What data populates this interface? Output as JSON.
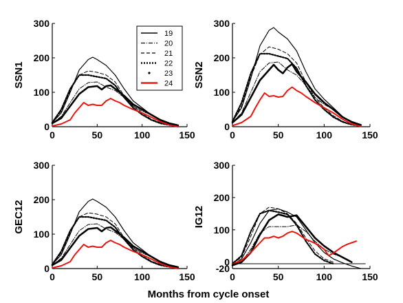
{
  "figure": {
    "xlabel": "Months from cycle onset"
  },
  "chart_data": [
    {
      "type": "line",
      "ylabel": "SSN1",
      "xlim": [
        0,
        150
      ],
      "ylim": [
        0,
        300
      ],
      "xticks": [
        "0",
        "50",
        "100",
        "150"
      ],
      "yticks": [
        "0",
        "100",
        "200",
        "300"
      ],
      "legend": {
        "placement": "top-right",
        "entries": [
          "19",
          "20",
          "21",
          "22",
          "23",
          "24"
        ]
      },
      "series": [
        {
          "name": "19",
          "style": "solid",
          "color": "#000000",
          "x": [
            0,
            10,
            20,
            30,
            40,
            45,
            50,
            60,
            70,
            80,
            90,
            100,
            110,
            120,
            130,
            140
          ],
          "y": [
            12,
            40,
            100,
            165,
            195,
            202,
            195,
            178,
            150,
            110,
            75,
            55,
            35,
            18,
            8,
            2
          ]
        },
        {
          "name": "20",
          "style": "dashdot",
          "color": "#000000",
          "x": [
            0,
            10,
            20,
            30,
            40,
            50,
            60,
            70,
            80,
            90,
            100,
            110,
            120,
            130,
            140
          ],
          "y": [
            10,
            30,
            70,
            110,
            128,
            130,
            115,
            105,
            85,
            60,
            45,
            35,
            20,
            8,
            2
          ]
        },
        {
          "name": "21",
          "style": "dashed",
          "color": "#000000",
          "x": [
            0,
            10,
            20,
            30,
            40,
            50,
            60,
            70,
            80,
            90,
            100,
            110,
            120,
            130,
            140
          ],
          "y": [
            12,
            45,
            105,
            150,
            162,
            158,
            150,
            130,
            90,
            60,
            40,
            22,
            12,
            5,
            2
          ]
        },
        {
          "name": "22",
          "style": "dotted",
          "color": "#000000",
          "x": [
            0,
            10,
            20,
            30,
            40,
            50,
            60,
            70,
            80,
            90,
            100,
            110,
            120,
            130,
            140
          ],
          "y": [
            12,
            50,
            110,
            150,
            150,
            145,
            140,
            120,
            85,
            55,
            35,
            20,
            10,
            5,
            2
          ]
        },
        {
          "name": "23",
          "style": "dots",
          "color": "#000000",
          "x": [
            0,
            10,
            20,
            30,
            40,
            50,
            55,
            60,
            65,
            70,
            80,
            90,
            100,
            110,
            120,
            130,
            140
          ],
          "y": [
            10,
            25,
            60,
            95,
            115,
            118,
            108,
            118,
            120,
            110,
            90,
            65,
            50,
            35,
            20,
            10,
            4
          ]
        },
        {
          "name": "24",
          "style": "solid",
          "color": "#e8150f",
          "x": [
            0,
            10,
            20,
            25,
            30,
            35,
            40,
            45,
            50,
            55,
            60,
            65,
            70,
            75,
            80,
            90,
            100,
            110,
            120,
            130,
            140
          ],
          "y": [
            2,
            8,
            20,
            40,
            55,
            70,
            62,
            65,
            62,
            62,
            75,
            82,
            75,
            70,
            62,
            50,
            40,
            28,
            15,
            5,
            0
          ]
        }
      ]
    },
    {
      "type": "line",
      "ylabel": "SSN2",
      "xlim": [
        0,
        150
      ],
      "ylim": [
        0,
        300
      ],
      "xticks": [
        "0",
        "50",
        "100",
        "150"
      ],
      "yticks": [
        "0",
        "100",
        "200",
        "300"
      ],
      "series": [
        {
          "name": "19",
          "style": "solid",
          "color": "#000000",
          "x": [
            0,
            10,
            20,
            30,
            40,
            45,
            50,
            60,
            70,
            80,
            90,
            100,
            110,
            120,
            130,
            140
          ],
          "y": [
            15,
            55,
            140,
            235,
            280,
            288,
            275,
            255,
            220,
            160,
            110,
            80,
            55,
            30,
            12,
            3
          ]
        },
        {
          "name": "20",
          "style": "dashdot",
          "color": "#000000",
          "x": [
            0,
            10,
            20,
            30,
            40,
            50,
            60,
            70,
            80,
            90,
            100,
            110,
            120,
            130,
            140
          ],
          "y": [
            12,
            40,
            100,
            160,
            185,
            188,
            165,
            150,
            120,
            85,
            65,
            50,
            30,
            12,
            3
          ]
        },
        {
          "name": "21",
          "style": "dashed",
          "color": "#000000",
          "x": [
            0,
            10,
            20,
            30,
            40,
            50,
            60,
            70,
            80,
            90,
            100,
            110,
            120,
            130,
            140
          ],
          "y": [
            15,
            60,
            145,
            210,
            232,
            225,
            212,
            185,
            130,
            85,
            55,
            32,
            16,
            6,
            2
          ]
        },
        {
          "name": "22",
          "style": "dotted",
          "color": "#000000",
          "x": [
            0,
            10,
            20,
            30,
            40,
            50,
            60,
            70,
            80,
            90,
            100,
            110,
            120,
            130,
            140
          ],
          "y": [
            15,
            70,
            155,
            212,
            212,
            205,
            198,
            170,
            120,
            78,
            50,
            28,
            14,
            6,
            2
          ]
        },
        {
          "name": "23",
          "style": "dots",
          "color": "#000000",
          "x": [
            0,
            10,
            20,
            30,
            40,
            45,
            50,
            55,
            60,
            65,
            70,
            80,
            90,
            100,
            110,
            120,
            130,
            140
          ],
          "y": [
            12,
            35,
            85,
            135,
            165,
            180,
            165,
            155,
            172,
            182,
            160,
            130,
            95,
            70,
            50,
            28,
            14,
            5
          ]
        },
        {
          "name": "24",
          "style": "solid",
          "color": "#e8150f",
          "x": [
            0,
            10,
            20,
            25,
            30,
            35,
            40,
            45,
            50,
            55,
            60,
            65,
            70,
            75,
            80,
            90,
            100,
            110,
            120,
            130,
            140
          ],
          "y": [
            3,
            12,
            30,
            55,
            78,
            98,
            88,
            90,
            86,
            88,
            105,
            115,
            105,
            98,
            88,
            70,
            55,
            40,
            22,
            8,
            1
          ]
        }
      ]
    },
    {
      "type": "line",
      "ylabel": "GEC12",
      "xlim": [
        0,
        150
      ],
      "ylim": [
        0,
        300
      ],
      "xticks": [
        "0",
        "50",
        "100",
        "150"
      ],
      "yticks": [
        "0",
        "100",
        "200",
        "300"
      ],
      "series": [
        {
          "name": "19",
          "style": "solid",
          "color": "#000000",
          "x": [
            0,
            10,
            20,
            30,
            40,
            45,
            50,
            60,
            70,
            80,
            90,
            100,
            110,
            120,
            130,
            140
          ],
          "y": [
            12,
            40,
            100,
            165,
            195,
            202,
            195,
            178,
            150,
            110,
            75,
            55,
            35,
            18,
            8,
            2
          ]
        },
        {
          "name": "20",
          "style": "dashdot",
          "color": "#000000",
          "x": [
            0,
            10,
            20,
            30,
            40,
            50,
            60,
            70,
            80,
            90,
            100,
            110,
            120,
            130,
            140
          ],
          "y": [
            10,
            30,
            70,
            110,
            128,
            130,
            115,
            105,
            85,
            60,
            45,
            35,
            20,
            8,
            2
          ]
        },
        {
          "name": "21",
          "style": "dashed",
          "color": "#000000",
          "x": [
            0,
            10,
            20,
            30,
            40,
            50,
            60,
            70,
            80,
            90,
            100,
            110,
            120,
            130,
            140
          ],
          "y": [
            12,
            45,
            105,
            150,
            162,
            158,
            150,
            130,
            90,
            60,
            40,
            22,
            12,
            5,
            2
          ]
        },
        {
          "name": "22",
          "style": "dotted",
          "color": "#000000",
          "x": [
            0,
            10,
            20,
            30,
            40,
            50,
            60,
            70,
            80,
            90,
            100,
            110,
            120,
            130,
            140
          ],
          "y": [
            12,
            50,
            110,
            150,
            150,
            145,
            140,
            120,
            85,
            55,
            35,
            20,
            10,
            5,
            2
          ]
        },
        {
          "name": "23",
          "style": "dots",
          "color": "#000000",
          "x": [
            0,
            10,
            20,
            30,
            40,
            50,
            55,
            60,
            65,
            70,
            80,
            90,
            100,
            110,
            120,
            130,
            140
          ],
          "y": [
            10,
            25,
            60,
            95,
            115,
            118,
            108,
            118,
            120,
            110,
            90,
            65,
            50,
            35,
            20,
            10,
            4
          ]
        },
        {
          "name": "24",
          "style": "solid",
          "color": "#e8150f",
          "x": [
            0,
            10,
            20,
            25,
            30,
            35,
            40,
            45,
            50,
            55,
            60,
            65,
            70,
            75,
            80,
            90,
            100,
            110,
            120,
            130,
            140
          ],
          "y": [
            2,
            8,
            20,
            40,
            55,
            70,
            62,
            65,
            62,
            62,
            75,
            82,
            75,
            70,
            62,
            50,
            40,
            28,
            15,
            5,
            0
          ]
        }
      ]
    },
    {
      "type": "line",
      "ylabel": "IG12",
      "xlim": [
        0,
        150
      ],
      "ylim": [
        -20,
        300
      ],
      "xticks": [
        "0",
        "50",
        "100",
        "150"
      ],
      "yticks": [
        "-20",
        "0",
        "100",
        "200",
        "300"
      ],
      "series": [
        {
          "name": "19",
          "style": "solid",
          "color": "#000000",
          "x": [
            0,
            10,
            20,
            30,
            40,
            50,
            60,
            70,
            80,
            90,
            100,
            110,
            120,
            130,
            140
          ],
          "y": [
            -10,
            10,
            60,
            120,
            160,
            165,
            155,
            140,
            100,
            60,
            30,
            10,
            -2,
            -12,
            -20
          ]
        },
        {
          "name": "20",
          "style": "dashdot",
          "color": "#000000",
          "x": [
            0,
            10,
            20,
            30,
            40,
            50,
            60,
            70,
            80,
            90,
            100,
            110,
            120
          ],
          "y": [
            -8,
            0,
            40,
            90,
            110,
            110,
            110,
            115,
            95,
            65,
            40,
            25,
            15
          ]
        },
        {
          "name": "21",
          "style": "dashed",
          "color": "#000000",
          "x": [
            0,
            10,
            20,
            30,
            40,
            50,
            60,
            70,
            80,
            90,
            100,
            110
          ],
          "y": [
            -5,
            15,
            80,
            150,
            170,
            165,
            150,
            120,
            75,
            35,
            10,
            0
          ]
        },
        {
          "name": "22",
          "style": "dotted",
          "color": "#000000",
          "x": [
            0,
            10,
            20,
            30,
            40,
            50,
            60,
            70,
            80,
            90,
            100,
            110
          ],
          "y": [
            -5,
            20,
            95,
            150,
            160,
            155,
            148,
            115,
            65,
            25,
            5,
            -5
          ]
        },
        {
          "name": "23",
          "style": "dots",
          "color": "#000000",
          "x": [
            0,
            10,
            20,
            30,
            40,
            50,
            60,
            70,
            80,
            90,
            100,
            110,
            120,
            130
          ],
          "y": [
            -10,
            0,
            30,
            85,
            130,
            148,
            140,
            145,
            110,
            75,
            50,
            30,
            15,
            0
          ]
        },
        {
          "name": "24",
          "style": "solid",
          "color": "#e8150f",
          "x": [
            0,
            10,
            20,
            30,
            35,
            40,
            45,
            50,
            55,
            60,
            65,
            70,
            75,
            80,
            85,
            90,
            95,
            100,
            105,
            110,
            115,
            120,
            125,
            130,
            135
          ],
          "y": [
            -5,
            5,
            30,
            60,
            75,
            75,
            80,
            75,
            80,
            90,
            95,
            90,
            80,
            70,
            65,
            58,
            50,
            40,
            20,
            28,
            38,
            48,
            55,
            60,
            65
          ]
        },
        {
          "name": "",
          "style": "thin",
          "color": "#000000",
          "x": [
            0,
            145
          ],
          "y": [
            -5,
            -5
          ]
        }
      ]
    }
  ]
}
